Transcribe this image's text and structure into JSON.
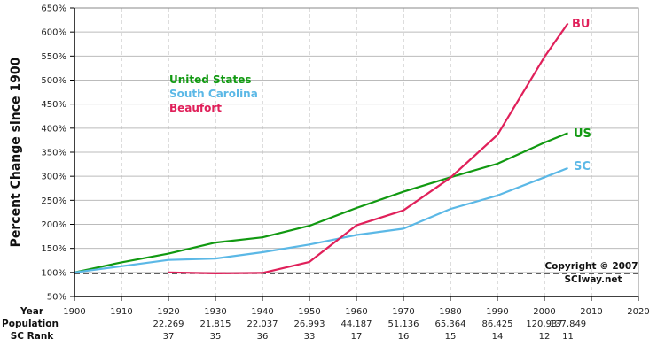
{
  "chart_data": {
    "type": "line",
    "title": "",
    "xlabel": "Year",
    "ylabel": "Percent Change since 1900",
    "xlim": [
      1900,
      2020
    ],
    "ylim": [
      50,
      650
    ],
    "x_ticks": [
      1900,
      1910,
      1920,
      1930,
      1940,
      1950,
      1960,
      1970,
      1980,
      1990,
      2000,
      2010,
      2020
    ],
    "y_ticks": [
      50,
      100,
      150,
      200,
      250,
      300,
      350,
      400,
      450,
      500,
      550,
      600,
      650
    ],
    "y_tick_labels": [
      "50%",
      "100%",
      "150%",
      "200%",
      "250%",
      "300%",
      "350%",
      "400%",
      "450%",
      "500%",
      "550%",
      "600%",
      "650%"
    ],
    "grid": {
      "horizontal": "solid",
      "vertical": "dashed"
    },
    "reference_line": {
      "y": 100,
      "style": "dashed",
      "color": "#000000"
    },
    "legend": {
      "position": "upper-left inside plot",
      "entries": [
        {
          "label": "United States",
          "color": "#119911"
        },
        {
          "label": "South Carolina",
          "color": "#5BB8E6"
        },
        {
          "label": "Beaufort",
          "color": "#E0205A"
        }
      ]
    },
    "series": [
      {
        "name": "United States",
        "short_label": "US",
        "color": "#119911",
        "x": [
          1900,
          1910,
          1920,
          1930,
          1940,
          1950,
          1960,
          1970,
          1980,
          1990,
          2000,
          2005
        ],
        "values": [
          100,
          121,
          139,
          162,
          173,
          197,
          234,
          268,
          298,
          326,
          370,
          390
        ]
      },
      {
        "name": "South Carolina",
        "short_label": "SC",
        "color": "#5BB8E6",
        "x": [
          1900,
          1910,
          1920,
          1930,
          1940,
          1950,
          1960,
          1970,
          1980,
          1990,
          2000,
          2005
        ],
        "values": [
          100,
          113,
          126,
          129,
          142,
          158,
          178,
          191,
          232,
          260,
          298,
          317
        ]
      },
      {
        "name": "Beaufort",
        "short_label": "BU",
        "color": "#E0205A",
        "x": [
          1920,
          1930,
          1940,
          1950,
          1960,
          1970,
          1980,
          1990,
          2000,
          2005
        ],
        "values": [
          100,
          98,
          99,
          122,
          198,
          229,
          297,
          386,
          548,
          618
        ]
      }
    ],
    "table_rows": {
      "row_labels": [
        "Year",
        "Population",
        "SC Rank"
      ],
      "years": [
        "1900",
        "1910",
        "1920",
        "1930",
        "1940",
        "1950",
        "1960",
        "1970",
        "1980",
        "1990",
        "2000",
        "2010",
        "2020"
      ],
      "population": [
        {
          "x": 1920,
          "label": "22,269"
        },
        {
          "x": 1930,
          "label": "21,815"
        },
        {
          "x": 1940,
          "label": "22,037"
        },
        {
          "x": 1950,
          "label": "26,993"
        },
        {
          "x": 1960,
          "label": "44,187"
        },
        {
          "x": 1970,
          "label": "51,136"
        },
        {
          "x": 1980,
          "label": "65,364"
        },
        {
          "x": 1990,
          "label": "86,425"
        },
        {
          "x": 2000,
          "label": "120,937"
        },
        {
          "x": 2005,
          "label": "137,849"
        }
      ],
      "sc_rank": [
        {
          "x": 1920,
          "label": "37"
        },
        {
          "x": 1930,
          "label": "35"
        },
        {
          "x": 1940,
          "label": "36"
        },
        {
          "x": 1950,
          "label": "33"
        },
        {
          "x": 1960,
          "label": "17"
        },
        {
          "x": 1970,
          "label": "16"
        },
        {
          "x": 1980,
          "label": "15"
        },
        {
          "x": 1990,
          "label": "14"
        },
        {
          "x": 2000,
          "label": "12"
        },
        {
          "x": 2005,
          "label": "11"
        }
      ]
    },
    "annotations": [
      "Copyright © 2007",
      "SCIway.net"
    ]
  },
  "labels": {
    "ylabel": "Percent Change since 1900",
    "row_year": "Year",
    "row_population": "Population",
    "row_rank": "SC Rank",
    "copyright_line1": "Copyright © 2007",
    "copyright_line2": "SCIway.net",
    "legend_us": "United States",
    "legend_sc": "South Carolina",
    "legend_bu": "Beaufort",
    "end_bu": "BU",
    "end_us": "US",
    "end_sc": "SC"
  },
  "colors": {
    "us": "#119911",
    "sc": "#5BB8E6",
    "bu": "#E0205A",
    "grid": "#BBBBBB",
    "axis": "#000000",
    "border": "#888888"
  }
}
